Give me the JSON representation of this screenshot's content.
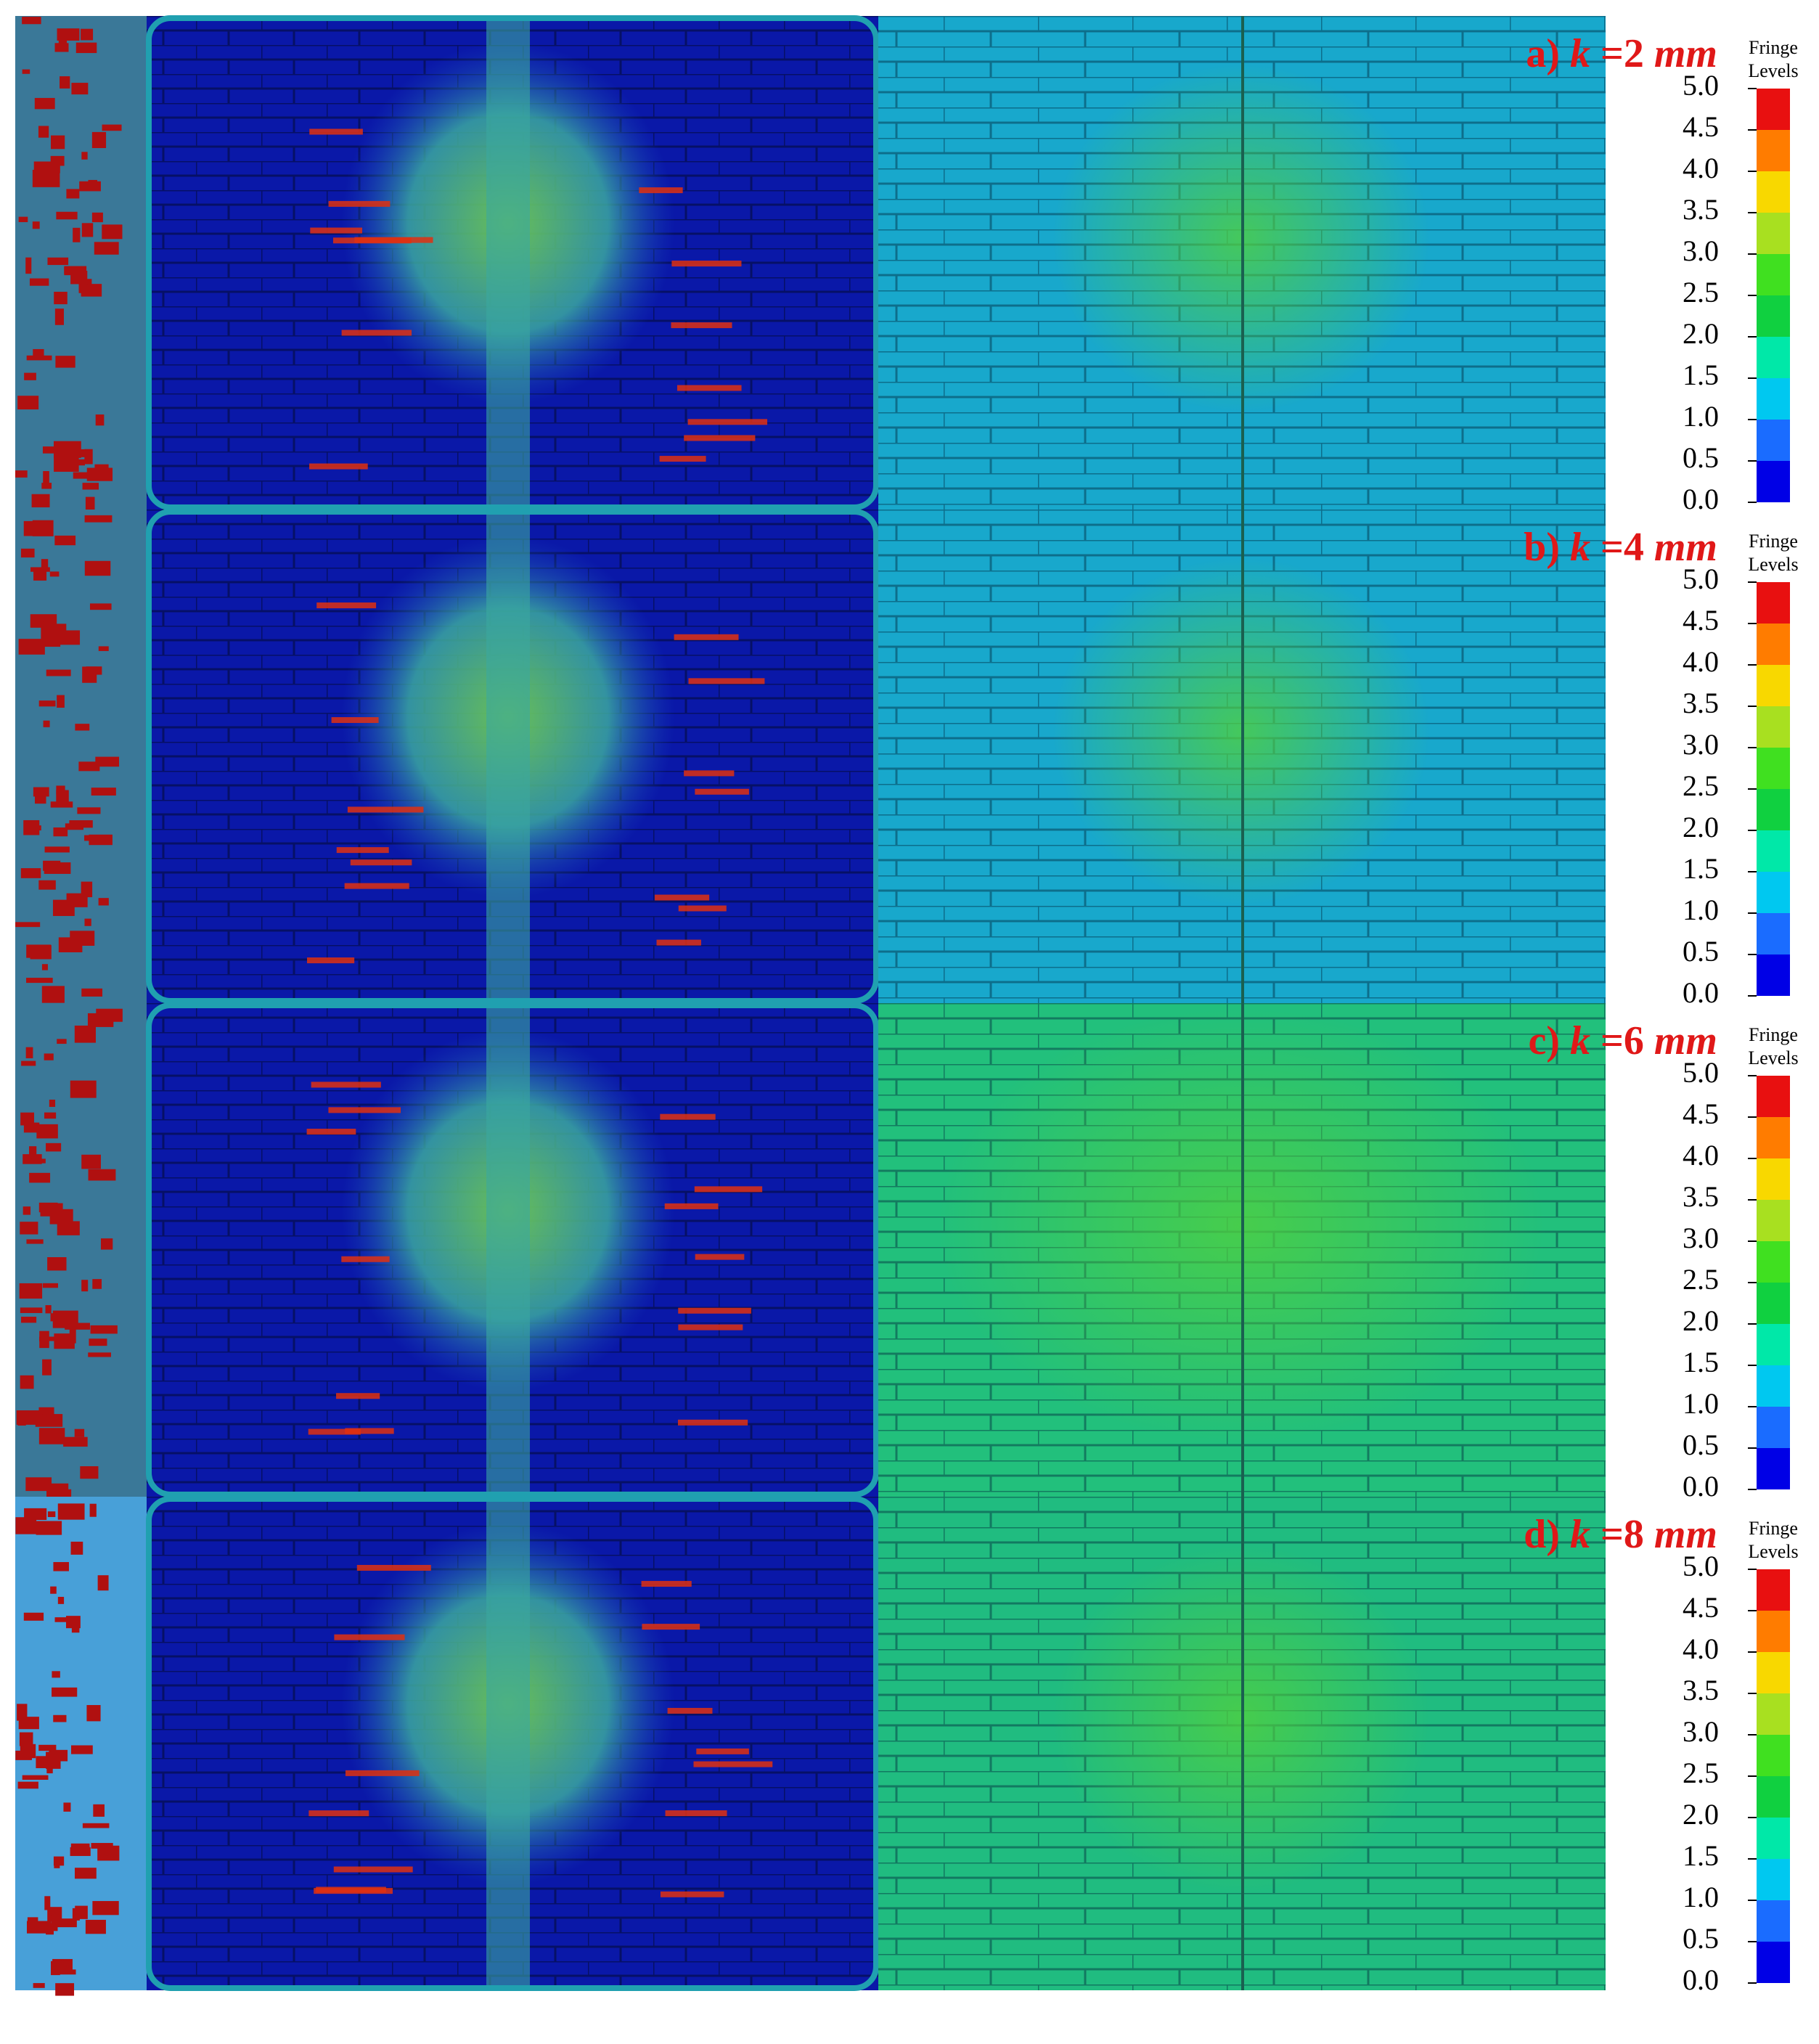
{
  "panels": [
    {
      "letter": "a)",
      "symbol": "k",
      "value": "=2",
      "unit": "mm",
      "legend": {
        "title": [
          "Fringe",
          "Levels"
        ],
        "levels": [
          "0.0",
          "0.5",
          "1.0",
          "1.5",
          "2.0",
          "2.5",
          "3.0",
          "3.5",
          "4.0",
          "4.5",
          "5.0"
        ]
      }
    },
    {
      "letter": "b)",
      "symbol": "k",
      "value": "=4",
      "unit": "mm",
      "legend": {
        "title": [
          "Fringe",
          "Levels"
        ],
        "levels": [
          "0.0",
          "0.5",
          "1.0",
          "1.5",
          "2.0",
          "2.5",
          "3.0",
          "3.5",
          "4.0",
          "4.5",
          "5.0"
        ]
      }
    },
    {
      "letter": "c)",
      "symbol": "k",
      "value": "=6",
      "unit": "mm",
      "legend": {
        "title": [
          "Fringe",
          "Levels"
        ],
        "levels": [
          "0.0",
          "0.5",
          "1.0",
          "1.5",
          "2.0",
          "2.5",
          "3.0",
          "3.5",
          "4.0",
          "4.5",
          "5.0"
        ]
      }
    },
    {
      "letter": "d)",
      "symbol": "k",
      "value": "=8",
      "unit": "mm",
      "legend": {
        "title": [
          "Fringe",
          "Levels"
        ],
        "levels": [
          "0.0",
          "0.5",
          "1.0",
          "1.5",
          "2.0",
          "2.5",
          "3.0",
          "3.5",
          "4.0",
          "4.5",
          "5.0"
        ]
      }
    }
  ]
}
